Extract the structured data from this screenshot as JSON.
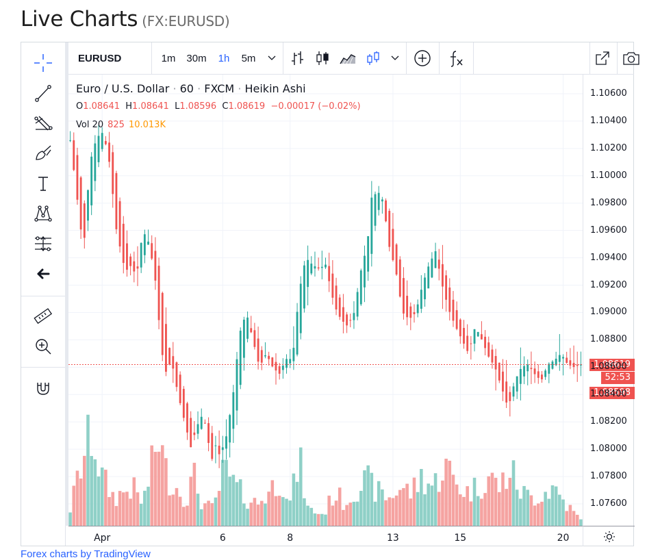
{
  "page": {
    "title": "Live Charts",
    "symbol_suffix": "(FX:EURUSD)",
    "footer_link": "Forex charts by TradingView"
  },
  "toolbar": {
    "symbol": "EURUSD",
    "intervals": [
      {
        "label": "1m",
        "active": false
      },
      {
        "label": "30m",
        "active": false
      },
      {
        "label": "1h",
        "active": true
      },
      {
        "label": "5m",
        "active": false
      }
    ],
    "dropdown_icon": "chevron-down-icon",
    "chart_type_icons": [
      "bars-icon",
      "candles-icon",
      "area-icon",
      "heikin-ashi-icon"
    ],
    "indicator_icon": "plus-circle-icon",
    "fx_icon": "fx-icon",
    "right_icons": [
      "fullscreen-icon",
      "camera-icon"
    ]
  },
  "left_tools": [
    "crosshair-icon",
    "trendline-icon",
    "fib-icon",
    "brush-icon",
    "text-icon",
    "pattern-icon",
    "projection-icon",
    "back-arrow-icon",
    "ruler-icon",
    "zoom-in-icon",
    "magnet-icon"
  ],
  "legend": {
    "title": "Euro / U.S. Dollar",
    "interval": "60",
    "source": "FXCM",
    "style": "Heikin Ashi",
    "open_label": "O",
    "open": "1.08641",
    "high_label": "H",
    "high": "1.08641",
    "low_label": "L",
    "low": "1.08596",
    "close_label": "C",
    "close": "1.08619",
    "change": "−0.00017 (−0.02%)",
    "vol_label": "Vol 20",
    "vol_value": "825",
    "vol_ma": "10.013K"
  },
  "price_tags": {
    "last": "1.08619",
    "countdown": "52:53",
    "low": "1.08598"
  },
  "colors": {
    "up": "#26a69a",
    "down": "#ef5350",
    "up_vol": "#8fd0c7",
    "down_vol": "#f5a3a1",
    "accent": "#2962ff"
  },
  "chart_data": {
    "type": "candlestick",
    "style": "Heikin Ashi",
    "y_ticks": [
      "1.10600",
      "1.10400",
      "1.10200",
      "1.10000",
      "1.09800",
      "1.09600",
      "1.09400",
      "1.09200",
      "1.09000",
      "1.08800",
      "1.08600",
      "1.08400",
      "1.08200",
      "1.08000",
      "1.07800",
      "1.07600"
    ],
    "ylim": [
      1.0744,
      1.1074
    ],
    "x_ticks": [
      "Apr",
      "6",
      "8",
      "13",
      "15",
      "20"
    ],
    "x_tick_bars": [
      9,
      43,
      62,
      91,
      110,
      139
    ],
    "bars_total": 145,
    "last_price": 1.08619,
    "path": [
      [
        0,
        1.1026
      ],
      [
        6,
        1.0945
      ],
      [
        9,
        1.101
      ],
      [
        12,
        1.1028
      ],
      [
        15,
        1.1032
      ],
      [
        18,
        1.1008
      ],
      [
        21,
        1.096
      ],
      [
        25,
        1.093
      ],
      [
        28,
        1.0935
      ],
      [
        30,
        1.0925
      ],
      [
        33,
        1.096
      ],
      [
        36,
        1.095
      ],
      [
        39,
        1.092
      ],
      [
        41,
        1.088
      ],
      [
        43,
        1.0855
      ],
      [
        46,
        1.0865
      ],
      [
        49,
        1.084
      ],
      [
        52,
        1.082
      ],
      [
        55,
        1.08
      ],
      [
        57,
        1.0815
      ],
      [
        60,
        1.0825
      ],
      [
        62,
        1.0815
      ],
      [
        64,
        1.079
      ],
      [
        66,
        1.0803
      ],
      [
        68,
        1.0795
      ],
      [
        71,
        1.081
      ],
      [
        74,
        1.084
      ],
      [
        77,
        1.0885
      ],
      [
        80,
        1.09
      ],
      [
        83,
        1.088
      ],
      [
        86,
        1.086
      ],
      [
        89,
        1.087
      ],
      [
        92,
        1.086
      ],
      [
        95,
        1.0855
      ],
      [
        98,
        1.0866
      ],
      [
        101,
        1.0866
      ],
      [
        104,
        1.0915
      ],
      [
        107,
        1.094
      ],
      [
        110,
        1.0935
      ],
      [
        113,
        1.0932
      ],
      [
        116,
        1.0935
      ],
      [
        118,
        1.092
      ],
      [
        120,
        1.0905
      ],
      [
        123,
        1.0895
      ],
      [
        126,
        1.089
      ],
      [
        129,
        1.09
      ],
      [
        132,
        1.093
      ],
      [
        135,
        1.095
      ],
      [
        137,
        1.0985
      ],
      [
        140,
        1.0988
      ],
      [
        142,
        1.0982
      ],
      [
        144,
        1.096
      ],
      [
        145,
        1.0948
      ],
      [
        148,
        1.093
      ],
      [
        151,
        1.09
      ],
      [
        154,
        1.0895
      ],
      [
        157,
        1.09
      ],
      [
        160,
        1.092
      ],
      [
        163,
        1.0935
      ],
      [
        166,
        1.0945
      ],
      [
        169,
        1.092
      ],
      [
        172,
        1.0902
      ],
      [
        175,
        1.089
      ],
      [
        178,
        1.088
      ],
      [
        181,
        1.087
      ],
      [
        184,
        1.089
      ],
      [
        187,
        1.088
      ],
      [
        190,
        1.0868
      ],
      [
        193,
        1.086
      ],
      [
        196,
        1.0845
      ],
      [
        199,
        1.083
      ],
      [
        202,
        1.085
      ],
      [
        205,
        1.086
      ],
      [
        208,
        1.0862
      ],
      [
        211,
        1.0855
      ],
      [
        214,
        1.085
      ],
      [
        217,
        1.0862
      ],
      [
        220,
        1.0865
      ],
      [
        223,
        1.087
      ],
      [
        226,
        1.0862
      ],
      [
        229,
        1.086
      ],
      [
        232,
        1.0862
      ]
    ],
    "path_scale": 232,
    "volume_profile": [
      [
        0,
        0.15
      ],
      [
        5,
        0.55
      ],
      [
        10,
        0.85
      ],
      [
        14,
        0.45
      ],
      [
        20,
        0.25
      ],
      [
        28,
        0.35
      ],
      [
        33,
        0.2
      ],
      [
        38,
        0.6
      ],
      [
        40,
        0.85
      ],
      [
        43,
        0.5
      ],
      [
        48,
        0.35
      ],
      [
        53,
        0.25
      ],
      [
        56,
        0.45
      ],
      [
        60,
        0.2
      ],
      [
        65,
        0.15
      ],
      [
        70,
        0.5
      ],
      [
        75,
        0.35
      ],
      [
        80,
        0.25
      ],
      [
        85,
        0.2
      ],
      [
        90,
        0.3
      ],
      [
        96,
        0.45
      ],
      [
        100,
        0.2
      ],
      [
        104,
        0.6
      ],
      [
        108,
        0.15
      ],
      [
        115,
        0.1
      ],
      [
        120,
        0.3
      ],
      [
        125,
        0.2
      ],
      [
        130,
        0.35
      ],
      [
        135,
        0.4
      ],
      [
        140,
        0.3
      ],
      [
        145,
        0.25
      ],
      [
        150,
        0.35
      ],
      [
        155,
        0.3
      ],
      [
        160,
        0.45
      ],
      [
        165,
        0.35
      ],
      [
        170,
        0.55
      ],
      [
        175,
        0.4
      ],
      [
        180,
        0.3
      ],
      [
        185,
        0.35
      ],
      [
        190,
        0.45
      ],
      [
        195,
        0.35
      ],
      [
        200,
        0.5
      ],
      [
        205,
        0.3
      ],
      [
        210,
        0.25
      ],
      [
        215,
        0.3
      ],
      [
        220,
        0.35
      ],
      [
        225,
        0.2
      ],
      [
        232,
        0.05
      ]
    ]
  }
}
